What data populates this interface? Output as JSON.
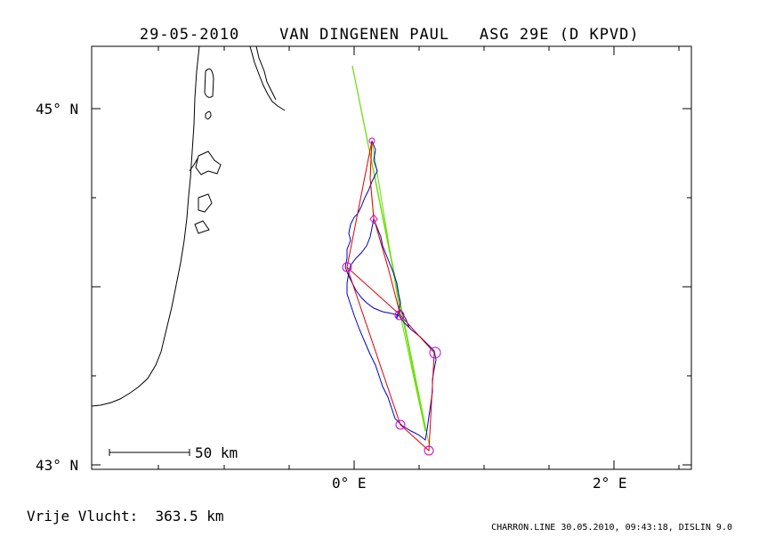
{
  "header": {
    "date": "29-05-2010",
    "pilot": "VAN DINGENEN PAUL",
    "glider": "ASG 29E (D KPVD)"
  },
  "axes": {
    "lat_top_label": "45° N",
    "lat_bottom_label": "43° N",
    "lon_left_label": "0° E",
    "lon_right_label": "2° E"
  },
  "scale_bar": {
    "label": "50 km"
  },
  "footer": {
    "distance": "Vrije Vlucht:  363.5 km",
    "info": "CHARRON.LINE 30.05.2010, 09:43:18, DISLIN 9.0"
  },
  "colors": {
    "track": "#0000cc",
    "task": "#dd0000",
    "closing": "#66dd00",
    "leg": "#ffcc00",
    "turnpoints": "#cc00cc",
    "coast": "#000000"
  },
  "icons": {
    "turnpoint": "circle",
    "start": "diamond"
  }
}
